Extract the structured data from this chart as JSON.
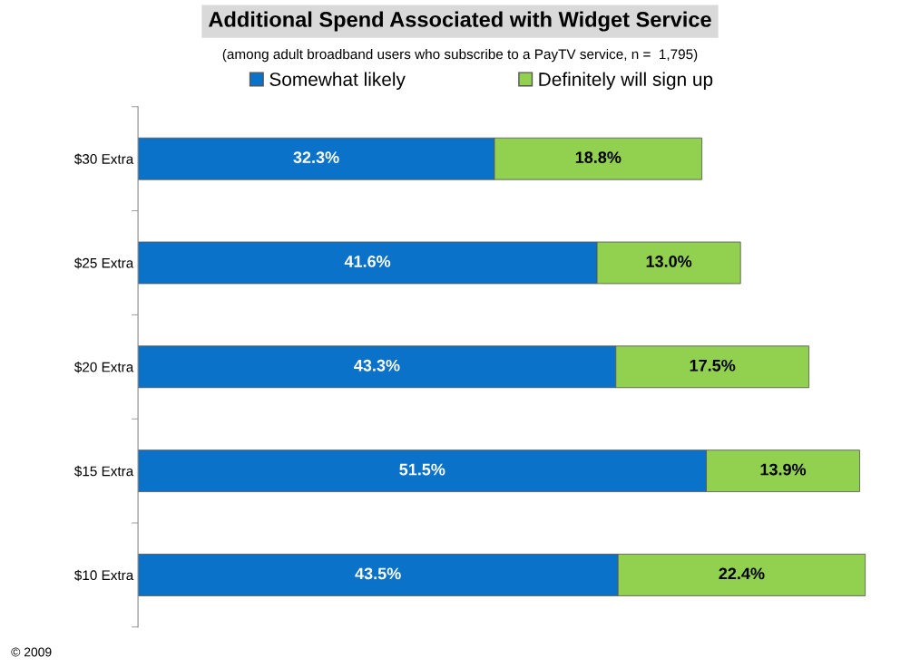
{
  "chart_data": {
    "type": "bar",
    "orientation": "horizontal",
    "stacked": true,
    "title": "Additional Spend Associated with Widget Service",
    "subtitle": "(among adult broadband users who subscribe to a PayTV service, n =  1,795)",
    "categories": [
      "$30 Extra",
      "$25 Extra",
      "$20 Extra",
      "$15 Extra",
      "$10 Extra"
    ],
    "series": [
      {
        "name": "Somewhat likely",
        "color": "#0a72c8",
        "values": [
          32.3,
          41.6,
          43.3,
          51.5,
          43.5
        ],
        "value_labels": [
          "32.3%",
          "41.6%",
          "43.3%",
          "51.5%",
          "43.5%"
        ]
      },
      {
        "name": "Definitely will sign up",
        "color": "#92d050",
        "values": [
          18.8,
          13.0,
          17.5,
          13.9,
          22.4
        ],
        "value_labels": [
          "18.8%",
          "13.0%",
          "17.5%",
          "13.9%",
          "22.4%"
        ]
      }
    ],
    "legend": "top",
    "grid": false,
    "annotations": [
      "© 2009"
    ]
  }
}
